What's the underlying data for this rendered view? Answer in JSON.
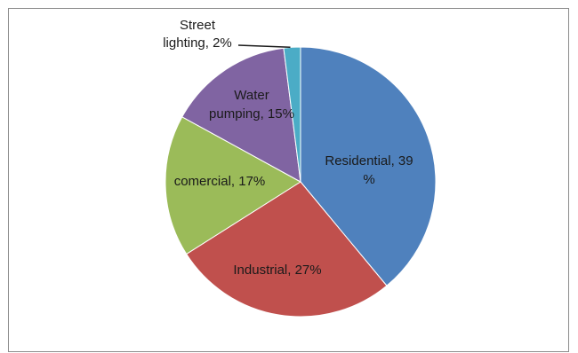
{
  "chart_data": {
    "type": "pie",
    "slices": [
      {
        "label_lines": [
          "Residential, 39",
          "%"
        ],
        "value": 39,
        "color": "#4f81bd"
      },
      {
        "label_lines": [
          "Industrial, 27%"
        ],
        "value": 27,
        "color": "#c0504d"
      },
      {
        "label_lines": [
          "comercial, 17%"
        ],
        "value": 17,
        "color": "#9bbb59"
      },
      {
        "label_lines": [
          "Water",
          "pumping, 15%"
        ],
        "value": 15,
        "color": "#8064a2"
      },
      {
        "label_lines": [
          "Street",
          "lighting, 2%"
        ],
        "value": 2,
        "color": "#4bacc6"
      }
    ],
    "start_angle_deg": 0,
    "direction": "clockwise",
    "legend": "none",
    "data_labels": "inside, leader line for small slice"
  }
}
